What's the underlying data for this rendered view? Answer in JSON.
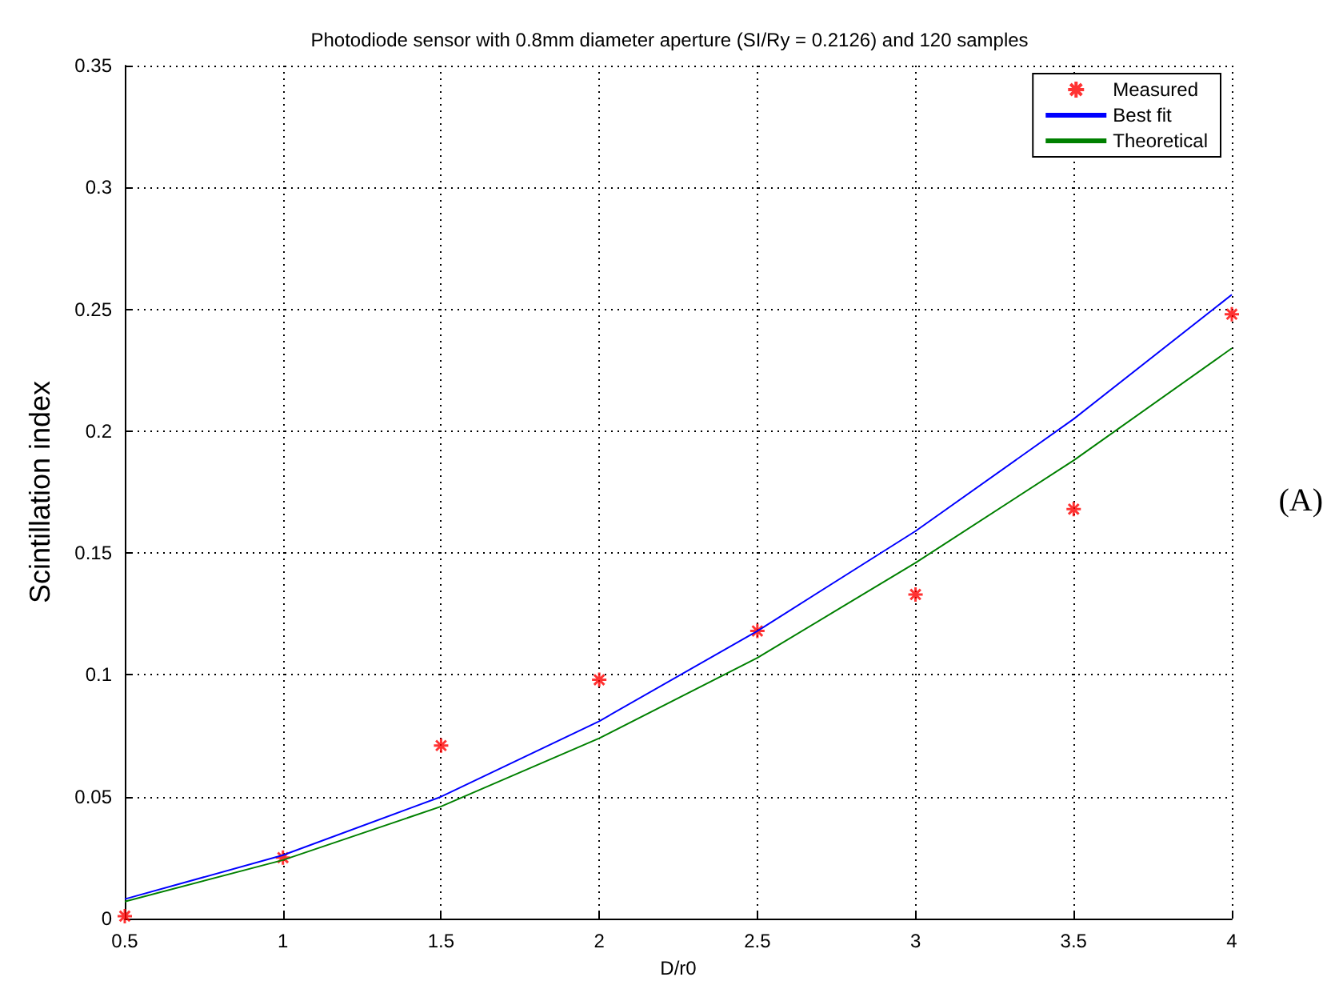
{
  "chart_data": {
    "type": "line",
    "title": "Photodiode sensor with 0.8mm diameter aperture (SI/Ry = 0.2126) and 120 samples",
    "xlabel": "D/r0",
    "ylabel": "Scintillation index",
    "annotations": [
      "(A)"
    ],
    "x": [
      0.5,
      1,
      1.5,
      2,
      2.5,
      3,
      3.5,
      4
    ],
    "series": [
      {
        "name": "Measured",
        "type": "scatter",
        "marker": "cross",
        "color": "#ff0000",
        "values": [
          0.001,
          0.025,
          0.071,
          0.098,
          0.118,
          0.133,
          0.168,
          0.248
        ]
      },
      {
        "name": "Best fit",
        "marker": "none",
        "color": "#0000ff",
        "values": [
          0.008,
          0.026,
          0.05,
          0.081,
          0.118,
          0.159,
          0.205,
          0.256
        ]
      },
      {
        "name": "Theoretical",
        "marker": "none",
        "color": "#008000",
        "values": [
          0.007,
          0.024,
          0.046,
          0.074,
          0.107,
          0.146,
          0.188,
          0.234
        ]
      }
    ],
    "xlim": [
      0.5,
      4
    ],
    "xticks": [
      0.5,
      1,
      1.5,
      2,
      2.5,
      3,
      3.5,
      4
    ],
    "ylim": [
      0,
      0.35
    ],
    "yticks": [
      0,
      0.05,
      0.1,
      0.15,
      0.2,
      0.25,
      0.3,
      0.35
    ],
    "grid": true,
    "legend": "top right",
    "line_style": "solid"
  }
}
